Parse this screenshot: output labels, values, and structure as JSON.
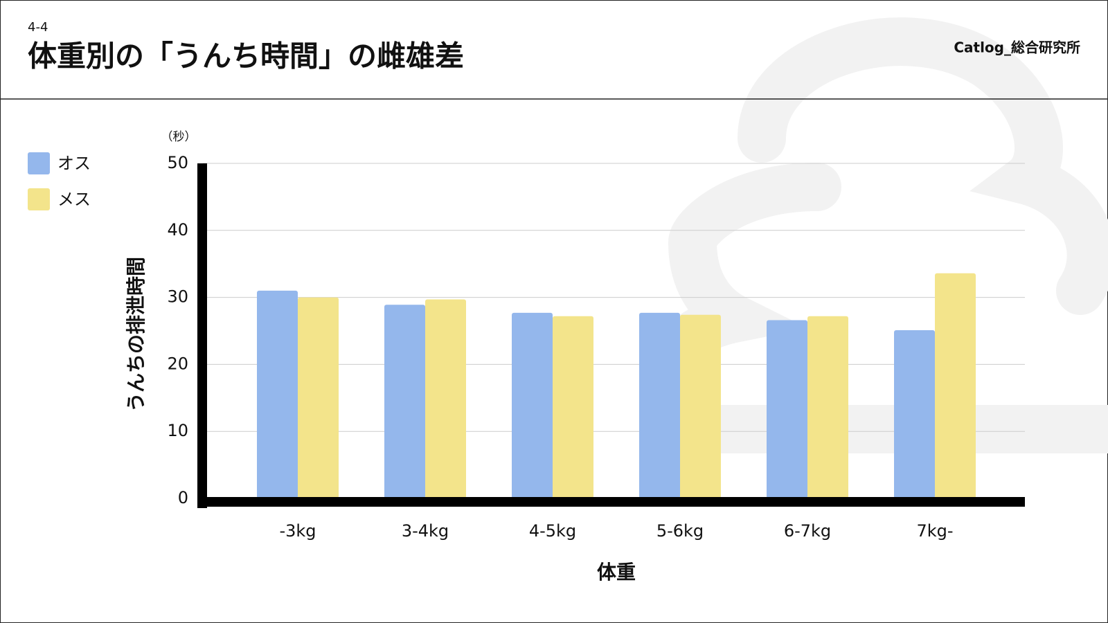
{
  "section": "4-4",
  "brand": "Catlog_総合研究所",
  "chart_data": {
    "type": "bar",
    "title": "体重別の「うんち時間」の雌雄差",
    "y_unit": "（秒）",
    "ylabel": "うんちの排泄時間",
    "xlabel": "体重",
    "categories": [
      "-3kg",
      "3-4kg",
      "4-5kg",
      "5-6kg",
      "6-7kg",
      "7kg-"
    ],
    "series": [
      {
        "name": "オス",
        "color": "#94b7ec",
        "values": [
          31,
          28.9,
          27.7,
          27.7,
          26.6,
          25.1
        ]
      },
      {
        "name": "メス",
        "color": "#f3e48b",
        "values": [
          30,
          29.7,
          27.2,
          27.4,
          27.2,
          33.6
        ]
      }
    ],
    "ylim": [
      0,
      50
    ],
    "yticks": [
      0,
      10,
      20,
      30,
      40,
      50
    ],
    "grid": true
  }
}
